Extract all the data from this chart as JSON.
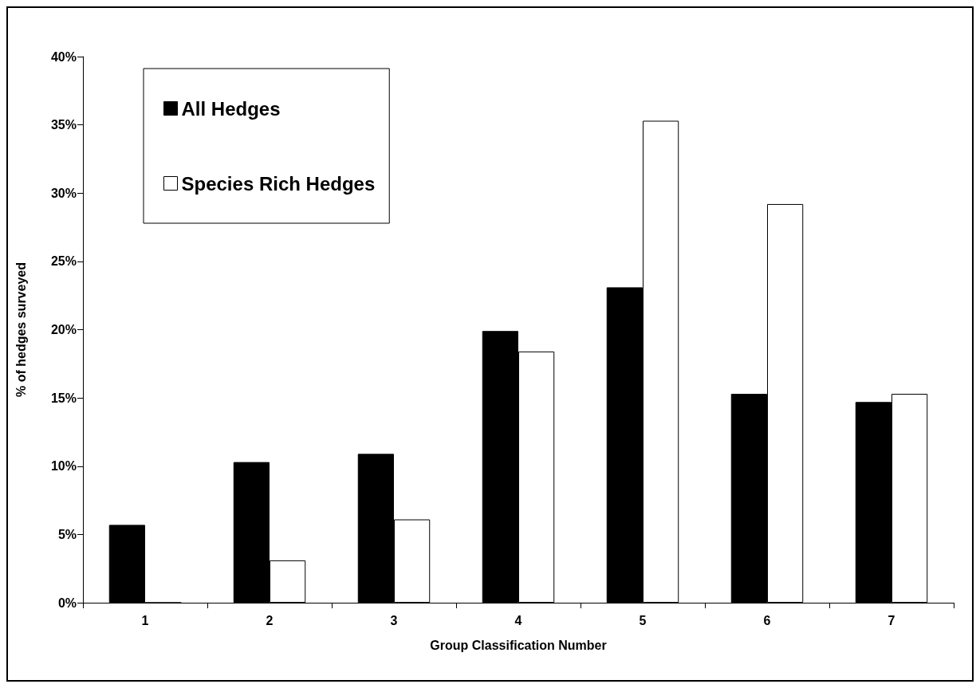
{
  "chart_data": {
    "type": "bar",
    "xlabel": "Group Classification Number",
    "ylabel": "% of hedges surveyed",
    "categories": [
      "1",
      "2",
      "3",
      "4",
      "5",
      "6",
      "7"
    ],
    "series": [
      {
        "name": "All Hedges",
        "color": "#000000",
        "values": [
          5.7,
          10.3,
          10.9,
          19.9,
          23.1,
          15.3,
          14.7
        ]
      },
      {
        "name": "Species Rich Hedges",
        "color": "#ffffff",
        "values": [
          0,
          3.1,
          6.1,
          18.4,
          35.3,
          29.2,
          15.3
        ]
      }
    ],
    "ylim": [
      0,
      40
    ],
    "yticks": [
      {
        "value": 0,
        "label": "0%"
      },
      {
        "value": 5,
        "label": "5%"
      },
      {
        "value": 10,
        "label": "10%"
      },
      {
        "value": 15,
        "label": "15%"
      },
      {
        "value": 20,
        "label": "20%"
      },
      {
        "value": 25,
        "label": "25%"
      },
      {
        "value": 30,
        "label": "30%"
      },
      {
        "value": 35,
        "label": "35%"
      },
      {
        "value": 40,
        "label": "40%"
      }
    ],
    "grid": false,
    "legend": "top left"
  }
}
